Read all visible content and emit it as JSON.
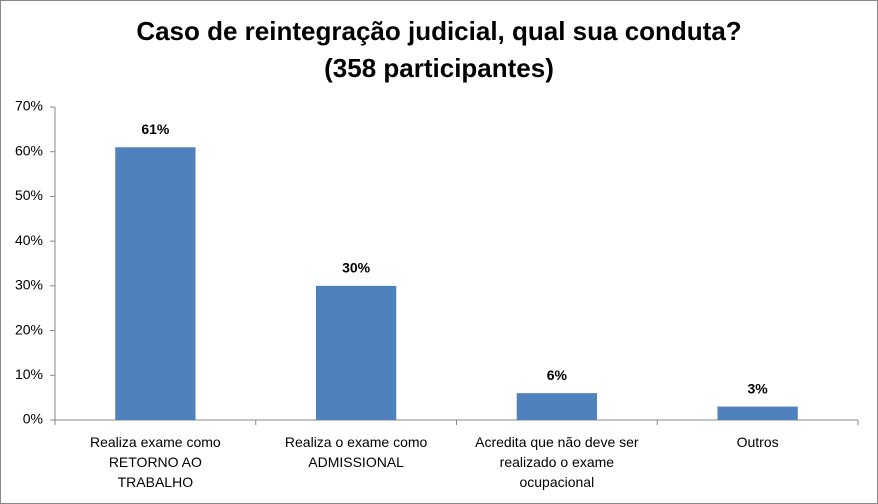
{
  "chart_data": {
    "type": "bar",
    "title": "Caso de reintegração judicial, qual sua conduta?",
    "subtitle": "(358 participantes)",
    "categories": [
      "Realiza exame como RETORNO AO TRABALHO",
      "Realiza o exame como ADMISSIONAL",
      "Acredita que  não deve ser realizado o exame ocupacional",
      "Outros"
    ],
    "values": [
      61,
      30,
      6,
      3
    ],
    "value_labels": [
      "61%",
      "30%",
      "6%",
      "3%"
    ],
    "color": "#4f81bd",
    "ylim": [
      0,
      70
    ],
    "yticks": [
      {
        "value": 0,
        "label": "0%"
      },
      {
        "value": 10,
        "label": "10%"
      },
      {
        "value": 20,
        "label": "20%"
      },
      {
        "value": 30,
        "label": "30%"
      },
      {
        "value": 40,
        "label": "40%"
      },
      {
        "value": 50,
        "label": "50%"
      },
      {
        "value": 60,
        "label": "60%"
      },
      {
        "value": 70,
        "label": "70%"
      }
    ],
    "grid": false
  }
}
